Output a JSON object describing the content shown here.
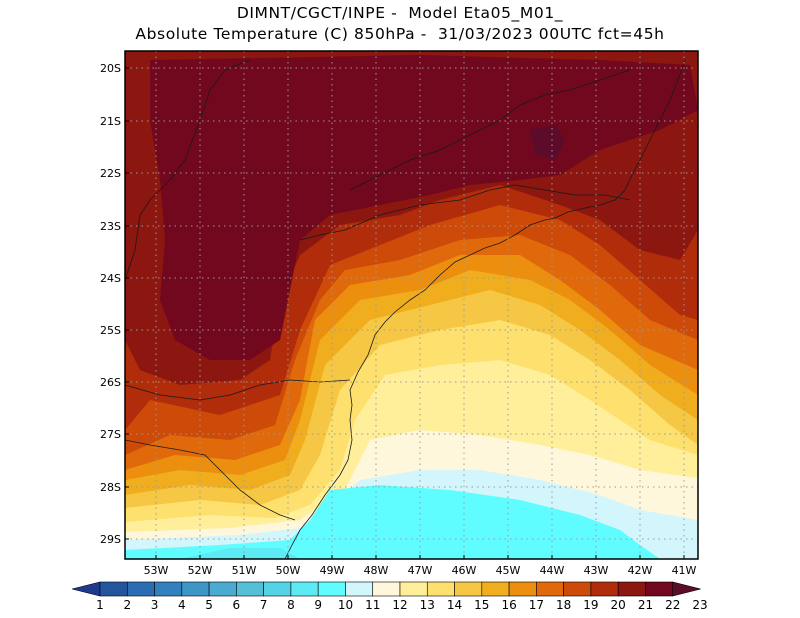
{
  "header": {
    "line1": "DIMNT/CGCT/INPE -  Model Eta05_M01_",
    "line2": "Absolute Temperature (C) 850hPa -  31/03/2023 00UTC fct=45h"
  },
  "map": {
    "variable": "Absolute Temperature",
    "units": "C",
    "level": "850hPa",
    "lat_labels": [
      "20S",
      "21S",
      "22S",
      "23S",
      "24S",
      "25S",
      "26S",
      "27S",
      "28S",
      "29S"
    ],
    "lon_labels": [
      "53W",
      "52W",
      "51W",
      "50W",
      "49W",
      "48W",
      "47W",
      "46W",
      "45W",
      "44W",
      "43W",
      "42W",
      "41W"
    ],
    "lat_range": [
      -29.4,
      -19.8
    ],
    "lon_range": [
      -53.6,
      -40.6
    ],
    "grid": "dotted"
  },
  "colorbar": {
    "labels": [
      "1",
      "2",
      "3",
      "4",
      "5",
      "6",
      "7",
      "8",
      "9",
      "10",
      "11",
      "12",
      "13",
      "14",
      "15",
      "16",
      "17",
      "18",
      "19",
      "20",
      "21",
      "22",
      "23"
    ],
    "colors": [
      "#1e3a8c",
      "#23559f",
      "#2a6db3",
      "#3281be",
      "#3e96c6",
      "#4aaacf",
      "#55bfd8",
      "#55d3e6",
      "#5ceaf5",
      "#5ffdff",
      "#d2f6fb",
      "#fff7dc",
      "#ffef9a",
      "#fde06d",
      "#f6c744",
      "#f0ae1e",
      "#ec8f0f",
      "#e06a0b",
      "#cd4a08",
      "#b02c0a",
      "#8c1610",
      "#72081e",
      "#5c0b2a"
    ]
  }
}
